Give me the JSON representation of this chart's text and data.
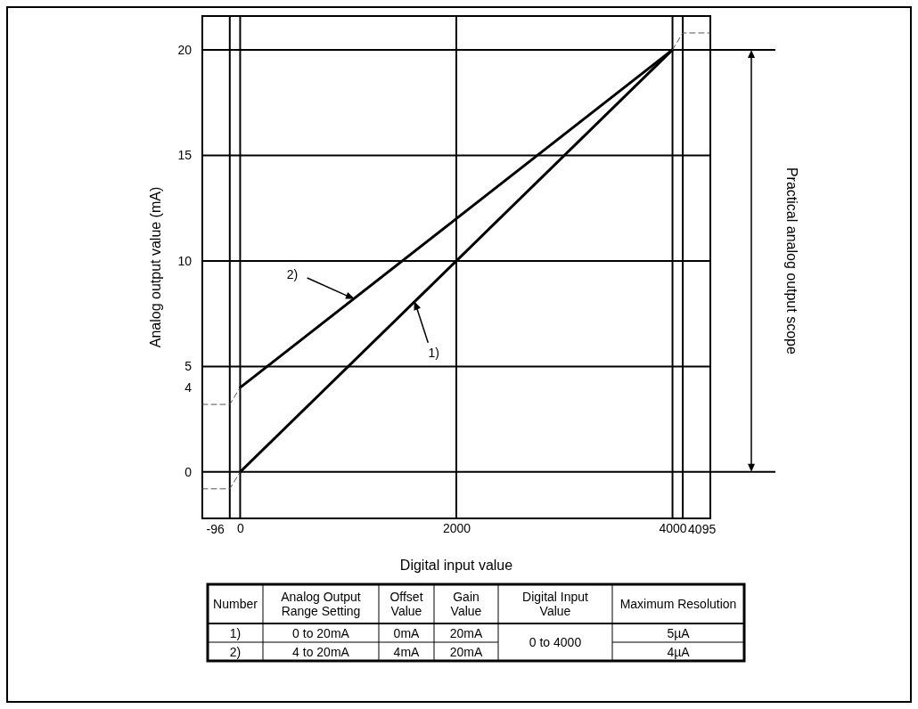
{
  "chart_data": [
    {
      "type": "line",
      "xlabel": "Digital input value",
      "ylabel": "Analog output value (mA)",
      "xlim": [
        -350,
        4350
      ],
      "ylim": [
        -2.2,
        21.6
      ],
      "xticks": [
        0,
        2000,
        4000
      ],
      "yticks": [
        0,
        4,
        5,
        10,
        15,
        20
      ],
      "grid": "x",
      "marker": "none",
      "series": [
        {
          "color": "#000000",
          "x": [
            0,
            4000
          ],
          "values": [
            0,
            20
          ],
          "line_style": "solid"
        },
        {
          "color": "#000000",
          "x": [
            0,
            4000
          ],
          "values": [
            4,
            20
          ],
          "line_style": "solid"
        },
        {
          "color": "#555555",
          "x": [
            -350,
            -96,
            0
          ],
          "values": [
            -0.8,
            -0.8,
            0
          ],
          "line_style": "dashed"
        },
        {
          "color": "#555555",
          "x": [
            -350,
            -96,
            0
          ],
          "values": [
            3.2,
            3.2,
            4
          ],
          "line_style": "dashed"
        },
        {
          "color": "#555555",
          "x": [
            4000,
            4095,
            4350
          ],
          "values": [
            20,
            20.8,
            20.8
          ],
          "line_style": "dashed"
        }
      ],
      "ref_lines": [
        {
          "axis": "x",
          "value": -96,
          "label": "-96"
        },
        {
          "axis": "x",
          "value": 4095,
          "label": "4095"
        },
        {
          "axis": "y",
          "value": 0
        },
        {
          "axis": "y",
          "value": 5
        },
        {
          "axis": "y",
          "value": 10
        },
        {
          "axis": "y",
          "value": 15
        },
        {
          "axis": "y",
          "value": 20
        }
      ],
      "annotations": [
        {
          "text": "2)",
          "x": 1060,
          "y": 8.2
        },
        {
          "text": "1)",
          "x": 1610,
          "y": 8.1
        },
        "Practical analog output scope"
      ]
    },
    {
      "type": "other",
      "annotations": [
        "Number",
        "Analog Output Range Setting",
        "Offset Value",
        "Gain Value",
        "Digital Input Value",
        "Maximum Resolution",
        "1)",
        "0 to 20mA",
        "0mA",
        "20mA",
        "0 to 4000",
        "5µA",
        "2)",
        "4 to 20mA",
        "4mA",
        "20mA",
        "4µA"
      ]
    }
  ]
}
